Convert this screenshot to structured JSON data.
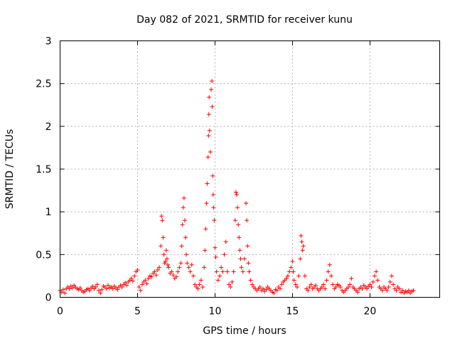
{
  "chart_data": {
    "type": "scatter",
    "title": "Day 082 of 2021, SRMTID for receiver kunu",
    "xlabel": "GPS time / hours",
    "ylabel": "SRMTID / TECUs",
    "xlim": [
      0,
      24.5
    ],
    "ylim": [
      0,
      3
    ],
    "xticks": [
      0,
      5,
      10,
      15,
      20
    ],
    "xtick_labels": [
      "0",
      "5",
      "10",
      "15",
      "20"
    ],
    "yticks": [
      0,
      0.5,
      1,
      1.5,
      2,
      2.5,
      3
    ],
    "ytick_labels": [
      "0",
      "0.5",
      "1",
      "1.5",
      "2",
      "2.5",
      "3"
    ],
    "grid": true,
    "marker": "+",
    "colors": {
      "points": "#ff0000",
      "grid": "#a0a0a0",
      "axes": "#000000"
    },
    "series": [
      {
        "name": "SRMTID",
        "points": [
          [
            0.0,
            0.08
          ],
          [
            0.1,
            0.06
          ],
          [
            0.2,
            0.09
          ],
          [
            0.3,
            0.05
          ],
          [
            0.4,
            0.1
          ],
          [
            0.5,
            0.12
          ],
          [
            0.6,
            0.1
          ],
          [
            0.7,
            0.13
          ],
          [
            0.8,
            0.11
          ],
          [
            0.9,
            0.14
          ],
          [
            1.0,
            0.12
          ],
          [
            1.1,
            0.1
          ],
          [
            1.2,
            0.09
          ],
          [
            1.3,
            0.11
          ],
          [
            1.4,
            0.08
          ],
          [
            1.5,
            0.06
          ],
          [
            1.6,
            0.07
          ],
          [
            1.7,
            0.09
          ],
          [
            1.8,
            0.1
          ],
          [
            1.9,
            0.08
          ],
          [
            2.0,
            0.11
          ],
          [
            2.1,
            0.13
          ],
          [
            2.2,
            0.1
          ],
          [
            2.3,
            0.12
          ],
          [
            2.4,
            0.15
          ],
          [
            2.5,
            0.08
          ],
          [
            2.6,
            0.05
          ],
          [
            2.7,
            0.09
          ],
          [
            2.8,
            0.13
          ],
          [
            2.9,
            0.12
          ],
          [
            3.0,
            0.1
          ],
          [
            3.1,
            0.14
          ],
          [
            3.2,
            0.11
          ],
          [
            3.3,
            0.12
          ],
          [
            3.4,
            0.1
          ],
          [
            3.5,
            0.13
          ],
          [
            3.6,
            0.11
          ],
          [
            3.7,
            0.09
          ],
          [
            3.8,
            0.12
          ],
          [
            3.9,
            0.14
          ],
          [
            4.0,
            0.12
          ],
          [
            4.1,
            0.15
          ],
          [
            4.2,
            0.17
          ],
          [
            4.3,
            0.14
          ],
          [
            4.4,
            0.18
          ],
          [
            4.5,
            0.2
          ],
          [
            4.6,
            0.22
          ],
          [
            4.7,
            0.19
          ],
          [
            4.8,
            0.25
          ],
          [
            4.9,
            0.3
          ],
          [
            5.0,
            0.32
          ],
          [
            5.1,
            0.12
          ],
          [
            5.2,
            0.08
          ],
          [
            5.3,
            0.15
          ],
          [
            5.4,
            0.18
          ],
          [
            5.5,
            0.2
          ],
          [
            5.6,
            0.16
          ],
          [
            5.7,
            0.22
          ],
          [
            5.8,
            0.25
          ],
          [
            5.9,
            0.24
          ],
          [
            6.0,
            0.28
          ],
          [
            6.1,
            0.3
          ],
          [
            6.2,
            0.26
          ],
          [
            6.3,
            0.32
          ],
          [
            6.4,
            0.35
          ],
          [
            6.5,
            0.6
          ],
          [
            6.55,
            0.95
          ],
          [
            6.6,
            0.9
          ],
          [
            6.65,
            0.7
          ],
          [
            6.7,
            0.5
          ],
          [
            6.75,
            0.4
          ],
          [
            6.8,
            0.42
          ],
          [
            6.85,
            0.55
          ],
          [
            6.9,
            0.45
          ],
          [
            6.95,
            0.38
          ],
          [
            7.0,
            0.35
          ],
          [
            7.1,
            0.28
          ],
          [
            7.2,
            0.3
          ],
          [
            7.3,
            0.26
          ],
          [
            7.4,
            0.22
          ],
          [
            7.5,
            0.24
          ],
          [
            7.6,
            0.3
          ],
          [
            7.7,
            0.35
          ],
          [
            7.8,
            0.4
          ],
          [
            7.85,
            0.6
          ],
          [
            7.9,
            0.85
          ],
          [
            7.95,
            1.05
          ],
          [
            8.0,
            1.16
          ],
          [
            8.05,
            0.9
          ],
          [
            8.1,
            0.7
          ],
          [
            8.15,
            0.5
          ],
          [
            8.2,
            0.4
          ],
          [
            8.3,
            0.35
          ],
          [
            8.4,
            0.3
          ],
          [
            8.5,
            0.38
          ],
          [
            8.6,
            0.25
          ],
          [
            8.7,
            0.15
          ],
          [
            8.8,
            0.12
          ],
          [
            8.9,
            0.1
          ],
          [
            9.0,
            0.15
          ],
          [
            9.1,
            0.2
          ],
          [
            9.2,
            0.12
          ],
          [
            9.3,
            0.35
          ],
          [
            9.35,
            0.55
          ],
          [
            9.4,
            0.8
          ],
          [
            9.45,
            1.1
          ],
          [
            9.5,
            1.33
          ],
          [
            9.55,
            1.64
          ],
          [
            9.58,
            1.89
          ],
          [
            9.6,
            2.14
          ],
          [
            9.62,
            2.34
          ],
          [
            9.65,
            1.95
          ],
          [
            9.7,
            1.7
          ],
          [
            9.75,
            2.43
          ],
          [
            9.8,
            2.53
          ],
          [
            9.82,
            2.23
          ],
          [
            9.85,
            1.42
          ],
          [
            9.88,
            1.2
          ],
          [
            9.9,
            1.05
          ],
          [
            9.95,
            0.9
          ],
          [
            10.0,
            0.58
          ],
          [
            10.05,
            0.47
          ],
          [
            10.1,
            0.3
          ],
          [
            10.2,
            0.2
          ],
          [
            10.3,
            0.25
          ],
          [
            10.4,
            0.35
          ],
          [
            10.5,
            0.3
          ],
          [
            10.6,
            0.5
          ],
          [
            10.7,
            0.65
          ],
          [
            10.8,
            0.3
          ],
          [
            10.9,
            0.15
          ],
          [
            11.0,
            0.12
          ],
          [
            11.1,
            0.18
          ],
          [
            11.2,
            0.3
          ],
          [
            11.3,
            0.9
          ],
          [
            11.35,
            1.23
          ],
          [
            11.4,
            1.2
          ],
          [
            11.45,
            1.05
          ],
          [
            11.5,
            0.85
          ],
          [
            11.55,
            0.7
          ],
          [
            11.6,
            0.55
          ],
          [
            11.65,
            0.45
          ],
          [
            11.7,
            0.35
          ],
          [
            11.8,
            0.3
          ],
          [
            11.9,
            0.45
          ],
          [
            12.0,
            1.1
          ],
          [
            12.05,
            0.9
          ],
          [
            12.1,
            0.6
          ],
          [
            12.15,
            0.4
          ],
          [
            12.2,
            0.3
          ],
          [
            12.3,
            0.2
          ],
          [
            12.4,
            0.15
          ],
          [
            12.5,
            0.12
          ],
          [
            12.6,
            0.1
          ],
          [
            12.7,
            0.08
          ],
          [
            12.8,
            0.1
          ],
          [
            12.9,
            0.12
          ],
          [
            13.0,
            0.08
          ],
          [
            13.1,
            0.1
          ],
          [
            13.2,
            0.07
          ],
          [
            13.3,
            0.09
          ],
          [
            13.4,
            0.12
          ],
          [
            13.5,
            0.1
          ],
          [
            13.6,
            0.08
          ],
          [
            13.7,
            0.06
          ],
          [
            13.8,
            0.05
          ],
          [
            13.9,
            0.09
          ],
          [
            14.0,
            0.08
          ],
          [
            14.1,
            0.12
          ],
          [
            14.2,
            0.1
          ],
          [
            14.3,
            0.15
          ],
          [
            14.4,
            0.18
          ],
          [
            14.5,
            0.2
          ],
          [
            14.6,
            0.22
          ],
          [
            14.7,
            0.25
          ],
          [
            14.8,
            0.3
          ],
          [
            14.9,
            0.35
          ],
          [
            15.0,
            0.42
          ],
          [
            15.05,
            0.3
          ],
          [
            15.1,
            0.2
          ],
          [
            15.2,
            0.15
          ],
          [
            15.3,
            0.12
          ],
          [
            15.4,
            0.25
          ],
          [
            15.5,
            0.45
          ],
          [
            15.55,
            0.72
          ],
          [
            15.6,
            0.65
          ],
          [
            15.65,
            0.55
          ],
          [
            15.7,
            0.6
          ],
          [
            15.8,
            0.25
          ],
          [
            15.9,
            0.1
          ],
          [
            16.0,
            0.08
          ],
          [
            16.1,
            0.12
          ],
          [
            16.2,
            0.15
          ],
          [
            16.3,
            0.1
          ],
          [
            16.4,
            0.12
          ],
          [
            16.5,
            0.14
          ],
          [
            16.6,
            0.1
          ],
          [
            16.7,
            0.08
          ],
          [
            16.8,
            0.1
          ],
          [
            16.9,
            0.12
          ],
          [
            17.0,
            0.15
          ],
          [
            17.1,
            0.1
          ],
          [
            17.2,
            0.2
          ],
          [
            17.3,
            0.3
          ],
          [
            17.4,
            0.38
          ],
          [
            17.5,
            0.25
          ],
          [
            17.6,
            0.15
          ],
          [
            17.7,
            0.1
          ],
          [
            17.8,
            0.12
          ],
          [
            17.9,
            0.15
          ],
          [
            18.0,
            0.14
          ],
          [
            18.1,
            0.12
          ],
          [
            18.2,
            0.08
          ],
          [
            18.3,
            0.06
          ],
          [
            18.4,
            0.08
          ],
          [
            18.5,
            0.1
          ],
          [
            18.6,
            0.12
          ],
          [
            18.7,
            0.15
          ],
          [
            18.8,
            0.22
          ],
          [
            18.9,
            0.12
          ],
          [
            19.0,
            0.1
          ],
          [
            19.1,
            0.08
          ],
          [
            19.2,
            0.06
          ],
          [
            19.3,
            0.1
          ],
          [
            19.4,
            0.12
          ],
          [
            19.5,
            0.1
          ],
          [
            19.6,
            0.14
          ],
          [
            19.7,
            0.12
          ],
          [
            19.8,
            0.1
          ],
          [
            19.9,
            0.13
          ],
          [
            20.0,
            0.15
          ],
          [
            20.1,
            0.12
          ],
          [
            20.2,
            0.18
          ],
          [
            20.3,
            0.25
          ],
          [
            20.4,
            0.3
          ],
          [
            20.5,
            0.2
          ],
          [
            20.6,
            0.12
          ],
          [
            20.7,
            0.1
          ],
          [
            20.8,
            0.08
          ],
          [
            20.9,
            0.12
          ],
          [
            21.0,
            0.1
          ],
          [
            21.1,
            0.08
          ],
          [
            21.2,
            0.12
          ],
          [
            21.3,
            0.18
          ],
          [
            21.4,
            0.25
          ],
          [
            21.5,
            0.15
          ],
          [
            21.6,
            0.1
          ],
          [
            21.7,
            0.08
          ],
          [
            21.8,
            0.12
          ],
          [
            21.9,
            0.1
          ],
          [
            22.0,
            0.06
          ],
          [
            22.1,
            0.08
          ],
          [
            22.2,
            0.05
          ],
          [
            22.3,
            0.07
          ],
          [
            22.4,
            0.06
          ],
          [
            22.5,
            0.08
          ],
          [
            22.6,
            0.05
          ],
          [
            22.7,
            0.07
          ],
          [
            22.8,
            0.08
          ]
        ]
      }
    ]
  }
}
